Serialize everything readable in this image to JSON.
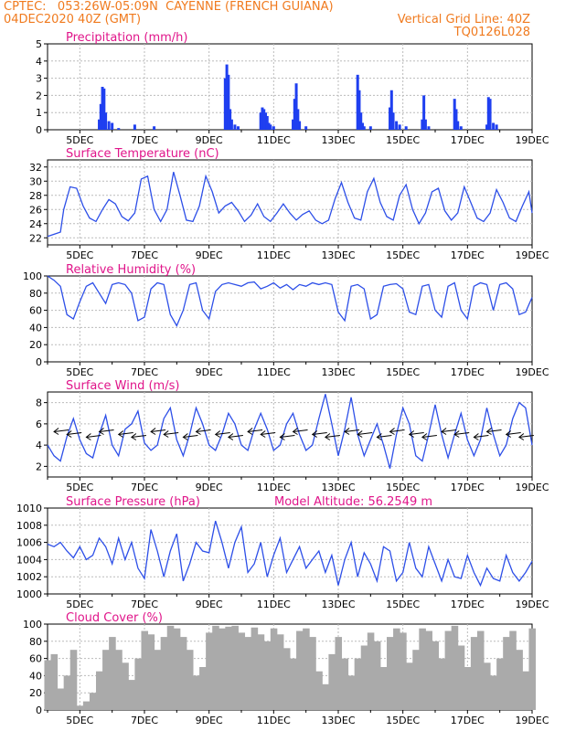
{
  "header": {
    "line1": "CPTEC:   053:26W-05:09N  CAYENNE (FRENCH GUIANA)",
    "line2": "04DEC2020 40Z (GMT)",
    "right1": "Vertical Grid Line: 40Z",
    "right2": "TQ0126L028"
  },
  "colors": {
    "header": "#f07a1e",
    "title": "#e0158a",
    "line": "#2d4fe8",
    "bar": "#1f3ff0",
    "cloud": "#aaaaaa"
  },
  "x_ticks": [
    "5DEC",
    "7DEC",
    "9DEC",
    "11DEC",
    "13DEC",
    "15DEC",
    "17DEC",
    "19DEC"
  ],
  "chart_data": [
    {
      "type": "bar",
      "title": "Precipitation (mm/h)",
      "ylim": [
        0,
        5
      ],
      "yticks": [
        0,
        1,
        2,
        3,
        4,
        5
      ],
      "x": [
        5.6,
        5.65,
        5.7,
        5.75,
        5.8,
        5.9,
        6.0,
        6.2,
        6.7,
        7.3,
        9.5,
        9.55,
        9.6,
        9.65,
        9.7,
        9.8,
        9.9,
        10.6,
        10.65,
        10.7,
        10.75,
        10.8,
        10.85,
        10.9,
        11.0,
        11.6,
        11.65,
        11.7,
        11.75,
        11.8,
        12.0,
        13.6,
        13.65,
        13.7,
        13.75,
        13.8,
        14.0,
        14.6,
        14.65,
        14.7,
        14.8,
        14.9,
        15.1,
        15.6,
        15.65,
        15.7,
        15.8,
        16.6,
        16.65,
        16.7,
        16.8,
        17.6,
        17.65,
        17.7,
        17.8,
        17.9
      ],
      "values": [
        0.6,
        1.5,
        2.5,
        2.4,
        1.0,
        0.5,
        0.4,
        0.1,
        0.3,
        0.2,
        3.0,
        3.8,
        3.2,
        1.2,
        0.6,
        0.3,
        0.2,
        1.0,
        1.3,
        1.2,
        1.0,
        0.8,
        0.4,
        0.3,
        0.2,
        0.6,
        1.8,
        2.7,
        1.2,
        0.5,
        0.2,
        3.2,
        2.3,
        1.0,
        0.4,
        0.2,
        0.2,
        1.3,
        2.3,
        1.0,
        0.5,
        0.3,
        0.2,
        0.6,
        2.0,
        0.6,
        0.2,
        1.8,
        1.2,
        0.5,
        0.2,
        0.3,
        1.9,
        1.8,
        0.4,
        0.3
      ]
    },
    {
      "type": "line",
      "title": "Surface Temperature (nC)",
      "ylim": [
        21,
        33
      ],
      "yticks": [
        22,
        24,
        26,
        28,
        30,
        32
      ],
      "x": [
        4.0,
        4.2,
        4.4,
        4.5,
        4.7,
        4.9,
        5.1,
        5.3,
        5.5,
        5.7,
        5.9,
        6.1,
        6.3,
        6.5,
        6.7,
        6.9,
        7.1,
        7.3,
        7.5,
        7.7,
        7.9,
        8.1,
        8.3,
        8.5,
        8.7,
        8.9,
        9.1,
        9.3,
        9.5,
        9.7,
        9.9,
        10.1,
        10.3,
        10.5,
        10.7,
        10.9,
        11.1,
        11.3,
        11.5,
        11.7,
        11.9,
        12.1,
        12.3,
        12.5,
        12.7,
        12.9,
        13.1,
        13.3,
        13.5,
        13.7,
        13.9,
        14.1,
        14.3,
        14.5,
        14.7,
        14.9,
        15.1,
        15.3,
        15.5,
        15.7,
        15.9,
        16.1,
        16.3,
        16.5,
        16.7,
        16.9,
        17.1,
        17.3,
        17.5,
        17.7,
        17.9,
        18.1,
        18.3,
        18.5,
        18.7,
        18.9,
        19.0
      ],
      "values": [
        22.2,
        22.5,
        22.8,
        26.0,
        29.2,
        29.0,
        26.5,
        24.8,
        24.3,
        26.0,
        27.4,
        26.8,
        25.0,
        24.4,
        25.5,
        30.3,
        30.7,
        26.0,
        24.3,
        26.0,
        31.3,
        28.0,
        24.5,
        24.3,
        26.5,
        30.7,
        28.5,
        25.5,
        26.5,
        27.0,
        25.8,
        24.3,
        25.2,
        26.8,
        25.0,
        24.3,
        25.5,
        26.8,
        25.5,
        24.5,
        25.3,
        25.8,
        24.5,
        24.0,
        24.5,
        27.5,
        29.8,
        27.0,
        24.8,
        24.5,
        28.5,
        30.4,
        27.0,
        25.0,
        24.5,
        28.0,
        29.5,
        26.0,
        24.0,
        25.5,
        28.5,
        29.0,
        25.8,
        24.5,
        25.5,
        29.2,
        27.0,
        24.8,
        24.3,
        25.5,
        28.8,
        27.0,
        24.8,
        24.3,
        26.5,
        28.5,
        25.5
      ]
    },
    {
      "type": "line",
      "title": "Relative Humidity (%)",
      "ylim": [
        0,
        100
      ],
      "yticks": [
        0,
        20,
        40,
        60,
        80,
        100
      ],
      "x": [
        4.0,
        4.2,
        4.4,
        4.6,
        4.8,
        5.0,
        5.2,
        5.4,
        5.6,
        5.8,
        6.0,
        6.2,
        6.4,
        6.6,
        6.8,
        7.0,
        7.2,
        7.4,
        7.6,
        7.8,
        8.0,
        8.2,
        8.4,
        8.6,
        8.8,
        9.0,
        9.2,
        9.4,
        9.6,
        9.8,
        10.0,
        10.2,
        10.4,
        10.6,
        10.8,
        11.0,
        11.2,
        11.4,
        11.6,
        11.8,
        12.0,
        12.2,
        12.4,
        12.6,
        12.8,
        13.0,
        13.2,
        13.4,
        13.6,
        13.8,
        14.0,
        14.2,
        14.4,
        14.6,
        14.8,
        15.0,
        15.2,
        15.4,
        15.6,
        15.8,
        16.0,
        16.2,
        16.4,
        16.6,
        16.8,
        17.0,
        17.2,
        17.4,
        17.6,
        17.8,
        18.0,
        18.2,
        18.4,
        18.6,
        18.8,
        19.0
      ],
      "values": [
        100,
        95,
        88,
        55,
        50,
        70,
        88,
        92,
        80,
        68,
        90,
        92,
        90,
        80,
        48,
        52,
        85,
        92,
        90,
        55,
        42,
        60,
        90,
        92,
        60,
        50,
        82,
        90,
        92,
        90,
        88,
        92,
        93,
        85,
        88,
        92,
        86,
        90,
        84,
        90,
        88,
        92,
        90,
        92,
        90,
        58,
        48,
        88,
        90,
        85,
        50,
        55,
        88,
        90,
        91,
        85,
        58,
        55,
        88,
        90,
        60,
        52,
        88,
        92,
        60,
        50,
        88,
        92,
        90,
        60,
        90,
        92,
        85,
        55,
        58,
        75
      ]
    },
    {
      "type": "line",
      "title": "Surface Wind (m/s)",
      "ylim": [
        1,
        9
      ],
      "yticks": [
        2,
        4,
        6,
        8
      ],
      "x": [
        4.0,
        4.2,
        4.4,
        4.6,
        4.8,
        5.0,
        5.2,
        5.4,
        5.6,
        5.8,
        6.0,
        6.2,
        6.4,
        6.6,
        6.8,
        7.0,
        7.2,
        7.4,
        7.6,
        7.8,
        8.0,
        8.2,
        8.4,
        8.6,
        8.8,
        9.0,
        9.2,
        9.4,
        9.6,
        9.8,
        10.0,
        10.2,
        10.4,
        10.6,
        10.8,
        11.0,
        11.2,
        11.4,
        11.6,
        11.8,
        12.0,
        12.2,
        12.4,
        12.6,
        12.8,
        13.0,
        13.2,
        13.4,
        13.6,
        13.8,
        14.0,
        14.2,
        14.4,
        14.6,
        14.8,
        15.0,
        15.2,
        15.4,
        15.6,
        15.8,
        16.0,
        16.2,
        16.4,
        16.6,
        16.8,
        17.0,
        17.2,
        17.4,
        17.6,
        17.8,
        18.0,
        18.2,
        18.4,
        18.6,
        18.8,
        19.0
      ],
      "values": [
        4.0,
        3.0,
        2.5,
        4.8,
        6.5,
        4.5,
        3.2,
        2.8,
        5.0,
        6.8,
        4.0,
        3.0,
        5.5,
        6.0,
        7.2,
        4.2,
        3.5,
        4.0,
        6.5,
        7.5,
        4.5,
        3.0,
        5.0,
        7.5,
        6.0,
        4.0,
        3.5,
        5.0,
        7.0,
        6.0,
        4.0,
        3.5,
        5.5,
        7.0,
        5.5,
        3.5,
        4.0,
        6.0,
        7.0,
        5.0,
        3.5,
        4.0,
        6.5,
        8.8,
        6.0,
        3.0,
        5.5,
        8.5,
        5.0,
        3.0,
        4.5,
        6.0,
        4.0,
        1.8,
        5.0,
        7.5,
        6.0,
        3.0,
        2.5,
        5.0,
        7.8,
        5.0,
        2.8,
        5.0,
        7.0,
        4.5,
        3.0,
        4.5,
        7.5,
        5.0,
        3.0,
        4.0,
        6.5,
        8.0,
        7.5,
        4.0
      ],
      "arrows": [
        4.2,
        4.6,
        5.2,
        5.6,
        6.2,
        6.6,
        7.2,
        7.6,
        8.2,
        8.6,
        9.2,
        9.6,
        10.2,
        10.6,
        11.2,
        11.6,
        12.2,
        12.6,
        13.2,
        13.6,
        14.2,
        14.6,
        15.2,
        15.6,
        16.2,
        16.6,
        17.2,
        17.6,
        18.2,
        18.6
      ]
    },
    {
      "type": "line",
      "title": "Surface Pressure (hPa)",
      "annotation": "Model Altitude: 56.2549 m",
      "ylim": [
        1000,
        1010
      ],
      "yticks": [
        1000,
        1002,
        1004,
        1006,
        1008,
        1010
      ],
      "x": [
        4.0,
        4.2,
        4.4,
        4.6,
        4.8,
        5.0,
        5.2,
        5.4,
        5.6,
        5.8,
        6.0,
        6.2,
        6.4,
        6.6,
        6.8,
        7.0,
        7.2,
        7.4,
        7.6,
        7.8,
        8.0,
        8.2,
        8.4,
        8.6,
        8.8,
        9.0,
        9.2,
        9.4,
        9.6,
        9.8,
        10.0,
        10.2,
        10.4,
        10.6,
        10.8,
        11.0,
        11.2,
        11.4,
        11.6,
        11.8,
        12.0,
        12.2,
        12.4,
        12.6,
        12.8,
        13.0,
        13.2,
        13.4,
        13.6,
        13.8,
        14.0,
        14.2,
        14.4,
        14.6,
        14.8,
        15.0,
        15.2,
        15.4,
        15.6,
        15.8,
        16.0,
        16.2,
        16.4,
        16.6,
        16.8,
        17.0,
        17.2,
        17.4,
        17.6,
        17.8,
        18.0,
        18.2,
        18.4,
        18.6,
        18.8,
        19.0
      ],
      "values": [
        1005.8,
        1005.5,
        1006.0,
        1005.0,
        1004.2,
        1005.5,
        1004.0,
        1004.5,
        1006.5,
        1005.5,
        1003.5,
        1006.5,
        1004.0,
        1006.0,
        1003.0,
        1001.8,
        1007.5,
        1005.0,
        1002.0,
        1005.0,
        1007.0,
        1001.5,
        1003.5,
        1006.0,
        1005.0,
        1004.8,
        1008.5,
        1006.0,
        1003.0,
        1006.0,
        1007.8,
        1002.5,
        1003.5,
        1006.0,
        1002.0,
        1004.5,
        1006.5,
        1002.5,
        1004.0,
        1005.5,
        1003.0,
        1004.0,
        1005.0,
        1002.5,
        1004.5,
        1001.0,
        1004.0,
        1006.0,
        1002.0,
        1004.8,
        1003.5,
        1001.5,
        1005.5,
        1005.0,
        1001.5,
        1002.5,
        1006.0,
        1003.0,
        1002.0,
        1005.5,
        1003.5,
        1001.5,
        1004.0,
        1002.0,
        1001.8,
        1004.5,
        1002.5,
        1001.0,
        1003.0,
        1001.8,
        1001.5,
        1004.5,
        1002.5,
        1001.5,
        1002.5,
        1003.8
      ]
    },
    {
      "type": "area",
      "title": "Cloud Cover (%)",
      "ylim": [
        0,
        100
      ],
      "yticks": [
        0,
        20,
        40,
        60,
        80,
        100
      ],
      "x": [
        4.0,
        4.2,
        4.4,
        4.6,
        4.8,
        5.0,
        5.2,
        5.4,
        5.6,
        5.8,
        6.0,
        6.2,
        6.4,
        6.6,
        6.8,
        7.0,
        7.2,
        7.4,
        7.6,
        7.8,
        8.0,
        8.2,
        8.4,
        8.6,
        8.8,
        9.0,
        9.2,
        9.4,
        9.6,
        9.8,
        10.0,
        10.2,
        10.4,
        10.6,
        10.8,
        11.0,
        11.2,
        11.4,
        11.6,
        11.8,
        12.0,
        12.2,
        12.4,
        12.6,
        12.8,
        13.0,
        13.2,
        13.4,
        13.6,
        13.8,
        14.0,
        14.2,
        14.4,
        14.6,
        14.8,
        15.0,
        15.2,
        15.4,
        15.6,
        15.8,
        16.0,
        16.2,
        16.4,
        16.6,
        16.8,
        17.0,
        17.2,
        17.4,
        17.6,
        17.8,
        18.0,
        18.2,
        18.4,
        18.6,
        18.8,
        19.0
      ],
      "values": [
        58,
        65,
        25,
        40,
        70,
        5,
        10,
        20,
        45,
        70,
        85,
        70,
        55,
        35,
        60,
        92,
        88,
        70,
        85,
        98,
        95,
        85,
        70,
        40,
        50,
        90,
        98,
        95,
        97,
        98,
        90,
        85,
        96,
        88,
        80,
        95,
        88,
        72,
        60,
        92,
        95,
        85,
        45,
        30,
        65,
        85,
        60,
        40,
        60,
        75,
        90,
        80,
        50,
        85,
        95,
        90,
        55,
        70,
        95,
        92,
        80,
        60,
        92,
        98,
        75,
        50,
        85,
        92,
        55,
        40,
        60,
        85,
        92,
        70,
        45,
        95
      ]
    }
  ]
}
